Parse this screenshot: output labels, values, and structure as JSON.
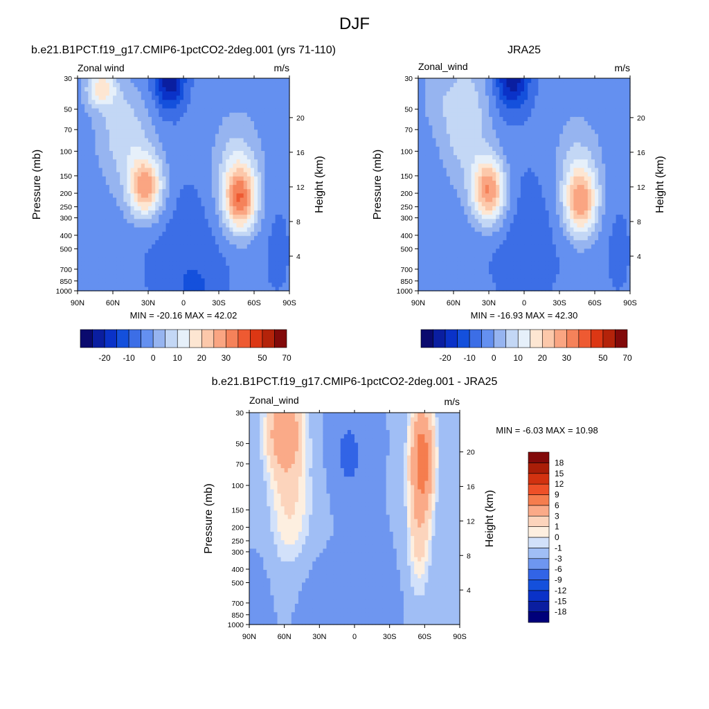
{
  "figure": {
    "title": "DJF"
  },
  "panels": [
    {
      "title": "b.e21.B1PCT.f19_g17.CMIP6-1pctCO2-2deg.001 (yrs 71-110)",
      "left_label": "Zonal wind",
      "right_label": "m/s",
      "stats": "MIN = -20.16  MAX =  42.02"
    },
    {
      "title": "JRA25",
      "left_label": "Zonal_wind",
      "right_label": "m/s",
      "stats": "MIN = -16.93  MAX =  42.30"
    },
    {
      "title": "b.e21.B1PCT.f19_g17.CMIP6-1pctCO2-2deg.001 - JRA25",
      "left_label": "Zonal_wind",
      "right_label": "m/s",
      "stats": "MIN =  -6.03  MAX =  10.98"
    }
  ],
  "chart_data": {
    "type": "heatmap",
    "variable": "Zonal wind",
    "units": "m/s",
    "x": {
      "ticks": [
        90,
        60,
        30,
        0,
        -30,
        -60,
        -90
      ],
      "tick_labels": [
        "90N",
        "60N",
        "30N",
        "0",
        "30S",
        "60S",
        "90S"
      ],
      "range": [
        90,
        -90
      ]
    },
    "y_left": {
      "label": "Pressure (mb)",
      "scale": "log",
      "range": [
        1000,
        30
      ],
      "ticks": [
        30,
        50,
        70,
        100,
        150,
        200,
        250,
        300,
        400,
        500,
        700,
        850,
        1000
      ],
      "tick_labels": [
        "30",
        "50",
        "70",
        "100",
        "150",
        "200",
        "250",
        "300",
        "400",
        "500",
        "700",
        "850",
        "1000"
      ]
    },
    "y_right": {
      "label": "Height (km)",
      "ticks": [
        4,
        8,
        12,
        16,
        20
      ],
      "tick_labels": [
        "4",
        "8",
        "12",
        "16",
        "20"
      ]
    },
    "colorbar_main": {
      "levels": [
        -25,
        -20,
        -15,
        -10,
        -5,
        0,
        5,
        10,
        15,
        20,
        25,
        30,
        35,
        40,
        50,
        60,
        70
      ],
      "labels": [
        "-20",
        "-10",
        "0",
        "10",
        "20",
        "30",
        "50",
        "70"
      ],
      "colors": [
        "#0a0a6e",
        "#0a1ea0",
        "#0a32c8",
        "#1450dc",
        "#3c6ee6",
        "#6490f0",
        "#96b4f0",
        "#c3d7f5",
        "#e6f0fa",
        "#fde6d2",
        "#fcc8aa",
        "#faa582",
        "#f5825a",
        "#ee5a32",
        "#dc3714",
        "#b4230a",
        "#820a0a"
      ]
    },
    "colorbar_diff": {
      "levels": [
        -18,
        -15,
        -12,
        -9,
        -6,
        -3,
        -1,
        0,
        1,
        3,
        6,
        9,
        12,
        15,
        18
      ],
      "labels": [
        "-18",
        "-15",
        "-12",
        "-9",
        "-6",
        "-3",
        "-1",
        "0",
        "1",
        "3",
        "6",
        "9",
        "12",
        "15",
        "18"
      ],
      "colors": [
        "#00007a",
        "#0a1ea0",
        "#0a32c8",
        "#1450dc",
        "#3264e6",
        "#6e96f0",
        "#a0bef5",
        "#d2e1fa",
        "#fdefe0",
        "#fcd4bc",
        "#faaa88",
        "#f57d4e",
        "#ee5028",
        "#d23210",
        "#aa1e08",
        "#820a0a"
      ]
    },
    "fields": [
      {
        "name": "model",
        "features": [
          {
            "lat": 32,
            "p": 180,
            "amp": 30,
            "slat": 10,
            "sp": 0.35
          },
          {
            "lat": 45,
            "p": 100,
            "amp": 8,
            "slat": 17,
            "sp": 0.6
          },
          {
            "lat": 70,
            "p": 35,
            "amp": 20,
            "slat": 9,
            "sp": 0.22
          },
          {
            "lat": 55,
            "p": 60,
            "amp": 6,
            "slat": 14,
            "sp": 0.45
          },
          {
            "lat": -48,
            "p": 220,
            "amp": 34,
            "slat": 10,
            "sp": 0.38
          },
          {
            "lat": -45,
            "p": 120,
            "amp": 10,
            "slat": 14,
            "sp": 0.55
          },
          {
            "lat": 12,
            "p": 30,
            "amp": -22,
            "slat": 9,
            "sp": 0.35
          },
          {
            "lat": -10,
            "p": 1000,
            "amp": -5,
            "slat": 15,
            "sp": 0.4
          },
          {
            "lat": 0,
            "p": 500,
            "amp": -4,
            "slat": 30,
            "sp": 1.0
          },
          {
            "lat": -80,
            "p": 500,
            "amp": -3,
            "slat": 10,
            "sp": 0.7
          }
        ]
      },
      {
        "name": "reanalysis",
        "features": [
          {
            "lat": 30,
            "p": 190,
            "amp": 34,
            "slat": 10,
            "sp": 0.38
          },
          {
            "lat": 50,
            "p": 60,
            "amp": 13,
            "slat": 14,
            "sp": 0.7
          },
          {
            "lat": 75,
            "p": 40,
            "amp": 4,
            "slat": 10,
            "sp": 0.4
          },
          {
            "lat": -48,
            "p": 230,
            "amp": 30,
            "slat": 10,
            "sp": 0.4
          },
          {
            "lat": -45,
            "p": 120,
            "amp": 8,
            "slat": 14,
            "sp": 0.55
          },
          {
            "lat": 10,
            "p": 30,
            "amp": -20,
            "slat": 10,
            "sp": 0.35
          },
          {
            "lat": 0,
            "p": 400,
            "amp": -4,
            "slat": 30,
            "sp": 1.0
          },
          {
            "lat": -80,
            "p": 500,
            "amp": -3,
            "slat": 10,
            "sp": 0.7
          }
        ]
      },
      {
        "name": "difference",
        "features": [
          {
            "lat": 60,
            "p": 40,
            "amp": 8,
            "slat": 12,
            "sp": 0.5
          },
          {
            "lat": 55,
            "p": 150,
            "amp": 4,
            "slat": 15,
            "sp": 0.8
          },
          {
            "lat": -58,
            "p": 60,
            "amp": 10,
            "slat": 8,
            "sp": 0.7
          },
          {
            "lat": -55,
            "p": 250,
            "amp": 4,
            "slat": 8,
            "sp": 0.8
          },
          {
            "lat": 5,
            "p": 60,
            "amp": -4,
            "slat": 10,
            "sp": 0.5
          },
          {
            "lat": 30,
            "p": 600,
            "amp": -1.5,
            "slat": 15,
            "sp": 0.5
          },
          {
            "lat": -20,
            "p": 700,
            "amp": -1.2,
            "slat": 15,
            "sp": 0.5
          },
          {
            "lat": 80,
            "p": 600,
            "amp": -1,
            "slat": 8,
            "sp": 0.6
          }
        ]
      }
    ]
  }
}
